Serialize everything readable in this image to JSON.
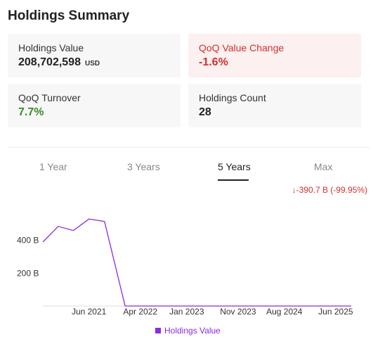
{
  "summary": {
    "title": "Holdings Summary",
    "cards": [
      {
        "label": "Holdings Value",
        "value": "208,702,598",
        "unit": "USD"
      },
      {
        "label": "QoQ Value Change",
        "value": "-1.6%"
      },
      {
        "label": "QoQ Turnover",
        "value": "7.7%"
      },
      {
        "label": "Holdings Count",
        "value": "28"
      }
    ]
  },
  "tabs": [
    "1 Year",
    "3 Years",
    "5 Years",
    "Max"
  ],
  "active_tab": "5 Years",
  "change_text": "↓-390.7 B (-99.95%)",
  "colors": {
    "line": "#8a2be2",
    "negative": "#d0312d",
    "positive": "#3a8a2a"
  },
  "chart_data": {
    "type": "line",
    "x": [
      "2020-09",
      "2020-12",
      "2021-03",
      "2021-06",
      "2021-09",
      "2022-01",
      "2022-04",
      "2022-09",
      "2023-01",
      "2023-06",
      "2023-11",
      "2024-03",
      "2024-08",
      "2025-01",
      "2025-06",
      "2025-09"
    ],
    "series": [
      {
        "name": "Holdings Value",
        "values": [
          390,
          485,
          460,
          530,
          515,
          0.21,
          0.21,
          0.21,
          0.21,
          0.21,
          0.21,
          0.21,
          0.21,
          0.21,
          0.21,
          0.21
        ]
      }
    ],
    "xticks": [
      "Jun 2021",
      "Apr 2022",
      "Jan 2023",
      "Nov 2023",
      "Aug 2024",
      "Jun 2025"
    ],
    "yticks": [
      "200 B",
      "400 B"
    ],
    "yunit": "B",
    "ylim": [
      0,
      600
    ],
    "grid": false,
    "legend": "bottom-center"
  }
}
